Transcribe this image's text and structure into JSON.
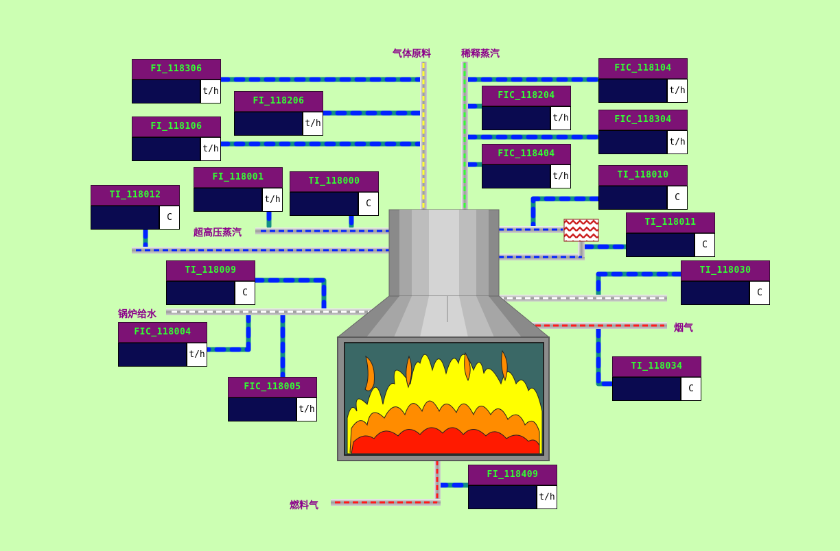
{
  "labels": {
    "feed_gas": "气体原料",
    "dilution_steam": "稀释蒸汽",
    "hp_steam": "超高压蒸汽",
    "boiler_water": "锅炉给水",
    "flue_gas": "烟气",
    "fuel_gas": "燃料气"
  },
  "tags": {
    "fi_118306": {
      "name": "FI_118306",
      "value": "",
      "unit": "t/h"
    },
    "fi_118206": {
      "name": "FI_118206",
      "value": "",
      "unit": "t/h"
    },
    "fi_118106": {
      "name": "FI_118106",
      "value": "",
      "unit": "t/h"
    },
    "fi_118001": {
      "name": "FI_118001",
      "value": "",
      "unit": "t/h"
    },
    "ti_118000": {
      "name": "TI_118000",
      "value": "",
      "unit": "C"
    },
    "ti_118012": {
      "name": "TI_118012",
      "value": "",
      "unit": "C"
    },
    "ti_118009": {
      "name": "TI_118009",
      "value": "",
      "unit": "C"
    },
    "fic_118004": {
      "name": "FIC_118004",
      "value": "",
      "unit": "t/h"
    },
    "fic_118005": {
      "name": "FIC_118005",
      "value": "",
      "unit": "t/h"
    },
    "fic_118104": {
      "name": "FIC_118104",
      "value": "",
      "unit": "t/h"
    },
    "fic_118204": {
      "name": "FIC_118204",
      "value": "",
      "unit": "t/h"
    },
    "fic_118304": {
      "name": "FIC_118304",
      "value": "",
      "unit": "t/h"
    },
    "fic_118404": {
      "name": "FIC_118404",
      "value": "",
      "unit": "t/h"
    },
    "ti_118010": {
      "name": "TI_118010",
      "value": "",
      "unit": "C"
    },
    "ti_118011": {
      "name": "TI_118011",
      "value": "",
      "unit": "C"
    },
    "ti_118030": {
      "name": "TI_118030",
      "value": "",
      "unit": "C"
    },
    "ti_118034": {
      "name": "TI_118034",
      "value": "",
      "unit": "C"
    },
    "fi_118409": {
      "name": "FI_118409",
      "value": "",
      "unit": "t/h"
    }
  },
  "colors": {
    "background": "#ccffb3",
    "tag_header": "#7d1275",
    "tag_text": "#33ff33",
    "value_field": "#0a0a50",
    "signal_line": "#0022ff",
    "signal_line_alt": "#138f84",
    "label_text": "#8b008b",
    "flame_red": "#ff1a00",
    "flame_orange": "#ff8c00",
    "flame_yellow": "#ffff00"
  }
}
